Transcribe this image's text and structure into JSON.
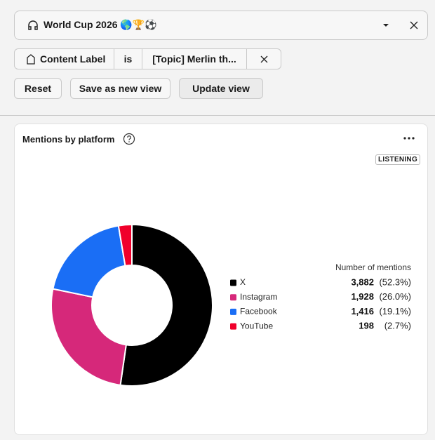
{
  "header": {
    "view_name": "World Cup 2026 🌎🏆⚽"
  },
  "filter": {
    "field": "Content Label",
    "operator": "is",
    "value": "[Topic] Merlin th..."
  },
  "buttons": {
    "reset": "Reset",
    "save": "Save as new view",
    "update": "Update view"
  },
  "card": {
    "badge": "LISTENING",
    "column_header": "Number of mentions",
    "percent_labels": [
      "(52.3%)",
      "(26.0%)",
      "(19.1%)",
      "(2.7%)"
    ]
  },
  "chart_data": {
    "type": "pie",
    "title": "Mentions by platform",
    "donut": true,
    "categories": [
      "X",
      "Instagram",
      "Facebook",
      "YouTube"
    ],
    "values": [
      3882,
      1928,
      1416,
      198
    ],
    "value_labels": [
      "3,882",
      "1,928",
      "1,416",
      "198"
    ],
    "colors": [
      "#000000",
      "#d6287a",
      "#1a6ef5",
      "#f0002b"
    ]
  }
}
